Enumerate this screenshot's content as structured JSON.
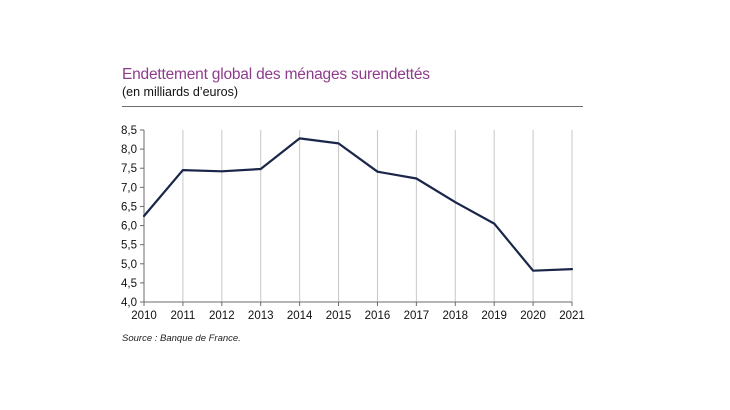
{
  "chart_data": {
    "type": "line",
    "title": "Endettement global des ménages surendettés",
    "subtitle": "(en milliards d’euros)",
    "source": "Source : Banque de France.",
    "x": [
      "2010",
      "2011",
      "2012",
      "2013",
      "2014",
      "2015",
      "2016",
      "2017",
      "2018",
      "2019",
      "2020",
      "2021"
    ],
    "series": [
      {
        "values": [
          6.25,
          7.45,
          7.42,
          7.48,
          8.28,
          8.15,
          7.41,
          7.23,
          6.61,
          6.05,
          4.82,
          4.86
        ]
      }
    ],
    "y_ticks": [
      "4,0",
      "4,5",
      "5,0",
      "5,5",
      "6,0",
      "6,5",
      "7,0",
      "7,5",
      "8,0",
      "8,5"
    ],
    "ylim": [
      4.0,
      8.5
    ],
    "grid": "vertical",
    "colors": {
      "line": "#1a2649",
      "title": "#8e3c8c",
      "grid": "#c8c8c8"
    }
  }
}
